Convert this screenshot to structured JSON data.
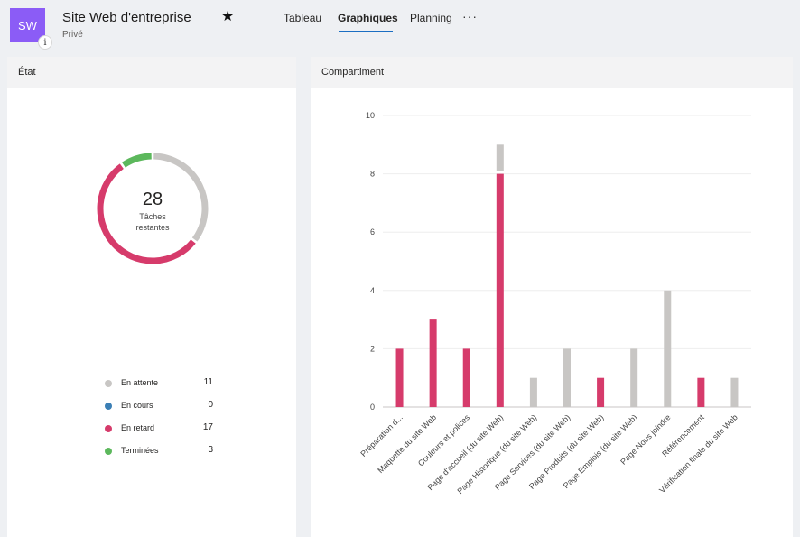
{
  "app": {
    "initials": "SW",
    "title": "Site Web d'entreprise",
    "privacy": "Privé",
    "info_glyph": "i",
    "star_glyph": "★"
  },
  "nav": {
    "tabs": [
      {
        "label": "Tableau"
      },
      {
        "label": "Graphiques"
      },
      {
        "label": "Planning"
      }
    ],
    "active": "Graphiques",
    "more": "···"
  },
  "status_card": {
    "title": "État",
    "center_value": "28",
    "center_label_1": "Tâches",
    "center_label_2": "restantes",
    "legend": [
      {
        "label": "En attente",
        "count": "11",
        "color": "#c8c6c4"
      },
      {
        "label": "En cours",
        "count": "0",
        "color": "#3b7fb5"
      },
      {
        "label": "En retard",
        "count": "17",
        "color": "#d63b6b"
      },
      {
        "label": "Terminées",
        "count": "3",
        "color": "#5cb85c"
      }
    ]
  },
  "bucket_card": {
    "title": "Compartiment"
  },
  "chart_data": {
    "type": "bar",
    "stacked": true,
    "categories": [
      "Préparation d...",
      "Maquette du site Web",
      "Couleurs et polices",
      "Page d'accueil (du site Web)",
      "Page Historique (du site Web)",
      "Page Services (du site Web)",
      "Page Produits (du site Web)",
      "Page Emplois (du site Web)",
      "Page Nous joindre",
      "Référencement",
      "Vérification finale du site Web"
    ],
    "series": [
      {
        "values": [
          2,
          3,
          2,
          8,
          0,
          0,
          1,
          0,
          0,
          1,
          0
        ],
        "color": "#d63b6b"
      },
      {
        "values": [
          0,
          0,
          0,
          1,
          1,
          2,
          0,
          2,
          4,
          0,
          1
        ],
        "color": "#c8c6c4"
      }
    ],
    "ylim": [
      0,
      10
    ],
    "yticks": [
      0,
      2,
      4,
      6,
      8,
      10
    ],
    "grid": true
  }
}
